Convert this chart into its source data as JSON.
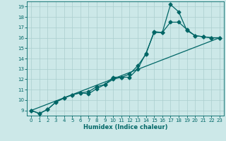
{
  "xlabel": "Humidex (Indice chaleur)",
  "bg_color": "#cce8e8",
  "grid_color": "#aacece",
  "line_color": "#006666",
  "xlim": [
    -0.5,
    23.5
  ],
  "ylim": [
    8.5,
    19.5
  ],
  "xticks": [
    0,
    1,
    2,
    3,
    4,
    5,
    6,
    7,
    8,
    9,
    10,
    11,
    12,
    13,
    14,
    15,
    16,
    17,
    18,
    19,
    20,
    21,
    22,
    23
  ],
  "yticks": [
    9,
    10,
    11,
    12,
    13,
    14,
    15,
    16,
    17,
    18,
    19
  ],
  "line1_x": [
    0,
    1,
    2,
    3,
    4,
    5,
    6,
    7,
    8,
    9,
    10,
    11,
    12,
    13,
    14,
    15,
    16,
    17,
    18,
    19,
    20,
    21,
    22,
    23
  ],
  "line1_y": [
    9.0,
    8.7,
    9.1,
    9.8,
    10.2,
    10.5,
    10.7,
    10.6,
    11.1,
    11.5,
    12.0,
    12.2,
    12.5,
    13.3,
    14.4,
    16.6,
    16.5,
    19.2,
    18.5,
    16.7,
    16.2,
    16.1,
    16.0,
    16.0
  ],
  "line2_x": [
    0,
    1,
    2,
    3,
    4,
    5,
    6,
    7,
    8,
    9,
    10,
    11,
    12,
    13,
    14,
    15,
    16,
    17,
    18,
    19,
    20,
    21,
    22,
    23
  ],
  "line2_y": [
    9.0,
    8.7,
    9.1,
    9.8,
    10.2,
    10.5,
    10.7,
    10.8,
    11.3,
    11.5,
    12.2,
    12.2,
    12.2,
    13.0,
    14.5,
    16.5,
    16.5,
    17.5,
    17.5,
    16.8,
    16.2,
    16.1,
    16.0,
    16.0
  ],
  "line3_x": [
    0,
    23
  ],
  "line3_y": [
    9.0,
    16.0
  ]
}
